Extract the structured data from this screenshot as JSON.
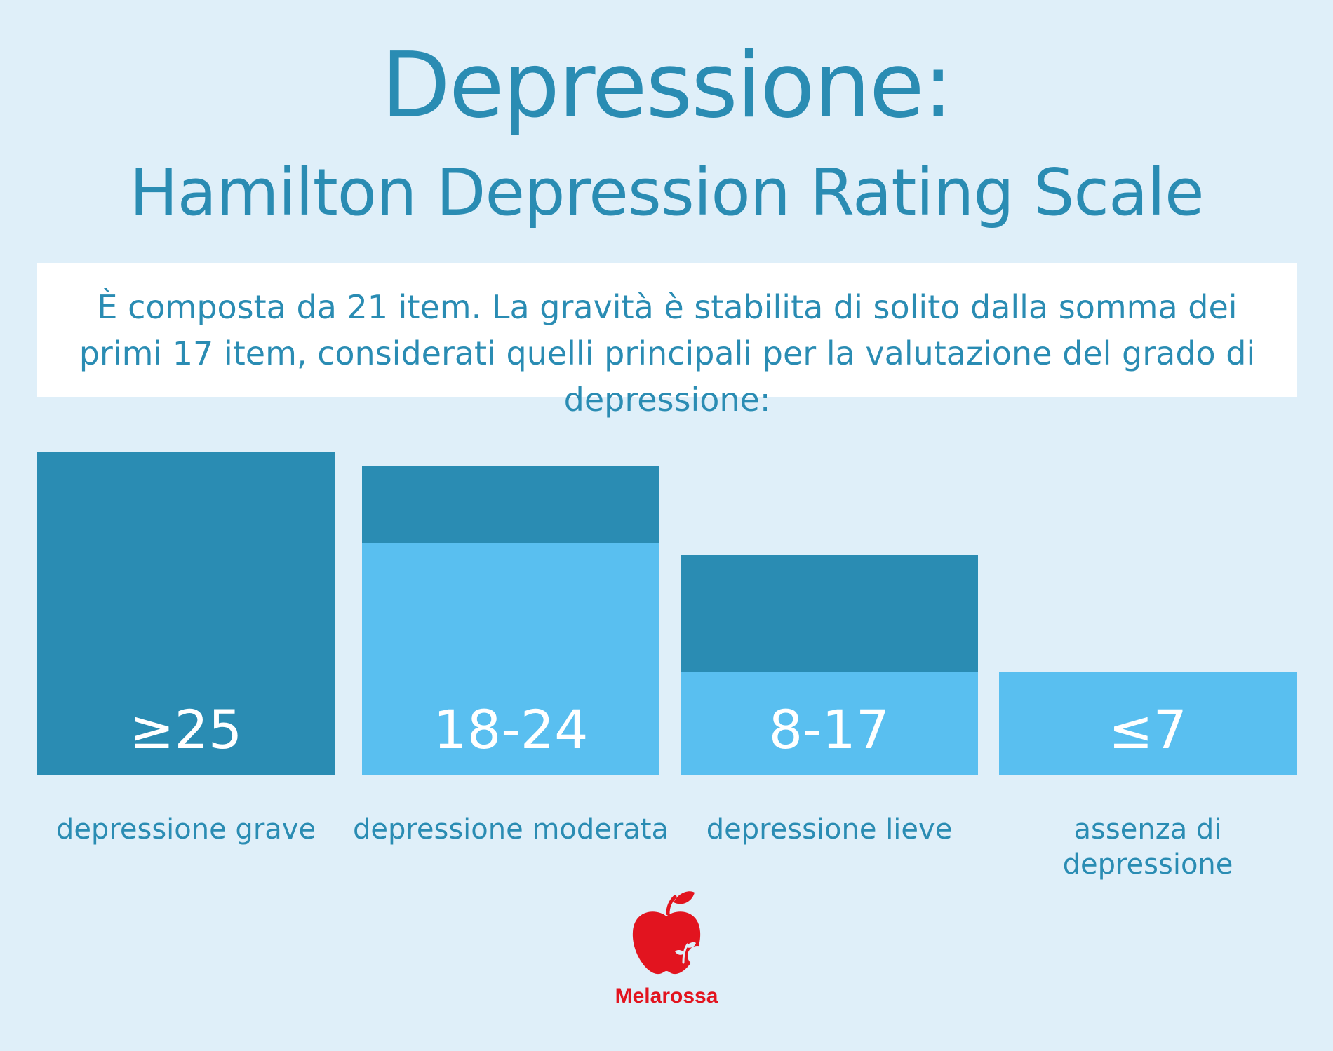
{
  "title": "Depressione:",
  "subtitle": "Hamilton Depression Rating Scale",
  "intro": "È composta da 21 item. La gravità è stabilita di solito dalla somma dei primi 17 item, considerati quelli principali per la valutazione del grado di depressione:",
  "categories": [
    {
      "value": "≥25",
      "label": "depressione grave"
    },
    {
      "value": "18-24",
      "label": "depressione moderata"
    },
    {
      "value": "8-17",
      "label": "depressione lieve"
    },
    {
      "value": "≤7",
      "label": "assenza di depressione"
    }
  ],
  "brand": "Melarossa",
  "colors": {
    "background": "#dfeff9",
    "dark_blue": "#2a8cb3",
    "light_blue": "#59bff0",
    "brand_red": "#e2141f"
  }
}
